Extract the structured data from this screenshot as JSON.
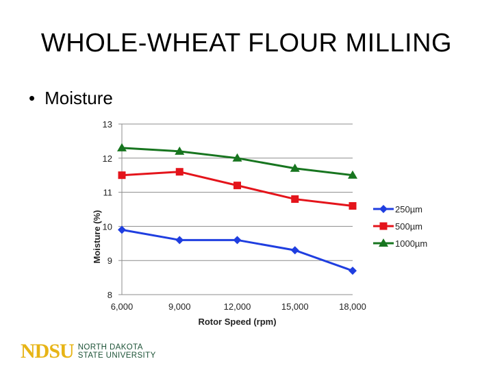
{
  "slide": {
    "title": "WHOLE-WHEAT FLOUR MILLING",
    "bullet": "Moisture",
    "bullet_marker": "•"
  },
  "logo": {
    "mark": "NDSU",
    "line1": "NORTH DAKOTA",
    "line2": "STATE UNIVERSITY",
    "colors": {
      "mark": "#e7b416",
      "text": "#1c5236"
    }
  },
  "chart_data": {
    "type": "line",
    "title": "",
    "xlabel": "Rotor Speed (rpm)",
    "ylabel": "Moisture (%)",
    "x": [
      6000,
      9000,
      12000,
      15000,
      18000
    ],
    "x_tick_labels": [
      "6,000",
      "9,000",
      "12,000",
      "15,000",
      "18,000"
    ],
    "ylim": [
      8,
      13
    ],
    "y_ticks": [
      8,
      9,
      10,
      11,
      12,
      13
    ],
    "y_tick_labels": [
      "8",
      "9",
      "10",
      "11",
      "12",
      "13"
    ],
    "grid": "horizontal",
    "legend_position": "right",
    "series": [
      {
        "name": "250µm",
        "values": [
          9.9,
          9.6,
          9.6,
          9.3,
          8.7
        ],
        "color": "#1f3ee0",
        "marker": "diamond"
      },
      {
        "name": "500µm",
        "values": [
          11.5,
          11.6,
          11.2,
          10.8,
          10.6
        ],
        "color": "#e4141b",
        "marker": "square"
      },
      {
        "name": "1000µm",
        "values": [
          12.3,
          12.2,
          12.0,
          11.7,
          11.5
        ],
        "color": "#17751f",
        "marker": "triangle"
      }
    ]
  }
}
